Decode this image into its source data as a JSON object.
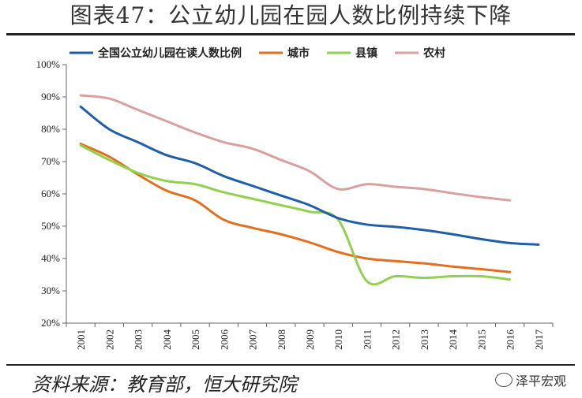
{
  "title": "图表47：公立幼儿园在园人数比例持续下降",
  "source": "资料来源：教育部，恒大研究院",
  "watermark": "泽平宏观",
  "chart_data": {
    "type": "line",
    "x": [
      "2001",
      "2002",
      "2003",
      "2004",
      "2005",
      "2006",
      "2007",
      "2008",
      "2009",
      "2010",
      "2011",
      "2012",
      "2013",
      "2014",
      "2015",
      "2016",
      "2017"
    ],
    "ylim": [
      20,
      100
    ],
    "yticks": [
      "20%",
      "30%",
      "40%",
      "50%",
      "60%",
      "70%",
      "80%",
      "90%",
      "100%"
    ],
    "ytick_values": [
      20,
      30,
      40,
      50,
      60,
      70,
      80,
      90,
      100
    ],
    "grid": false,
    "legend": "top",
    "series": [
      {
        "name": "全国公立幼儿园在读人数比例",
        "color": "#1f5fa8",
        "values": [
          87,
          80,
          76,
          72,
          69.5,
          65.5,
          62.5,
          59.5,
          56.5,
          52.5,
          50.5,
          49.8,
          48.8,
          47.5,
          46,
          44.8,
          44.3
        ]
      },
      {
        "name": "城市",
        "color": "#e07020",
        "values": [
          75.5,
          71.5,
          66,
          61,
          58,
          52,
          49.5,
          47.5,
          45,
          42,
          40,
          39.2,
          38.5,
          37.5,
          36.7,
          35.8,
          null
        ]
      },
      {
        "name": "县镇",
        "color": "#92d050",
        "values": [
          75,
          70.5,
          66.5,
          64,
          63,
          60.5,
          58.5,
          56.5,
          54.5,
          52,
          33,
          34.5,
          34,
          34.5,
          34.5,
          33.5,
          null
        ]
      },
      {
        "name": "农村",
        "color": "#d9a0a0",
        "values": [
          90.5,
          89.5,
          86,
          82.5,
          79,
          76,
          74,
          70.5,
          67,
          61.5,
          63,
          62.2,
          61.5,
          60.2,
          59,
          58,
          null
        ]
      }
    ]
  }
}
